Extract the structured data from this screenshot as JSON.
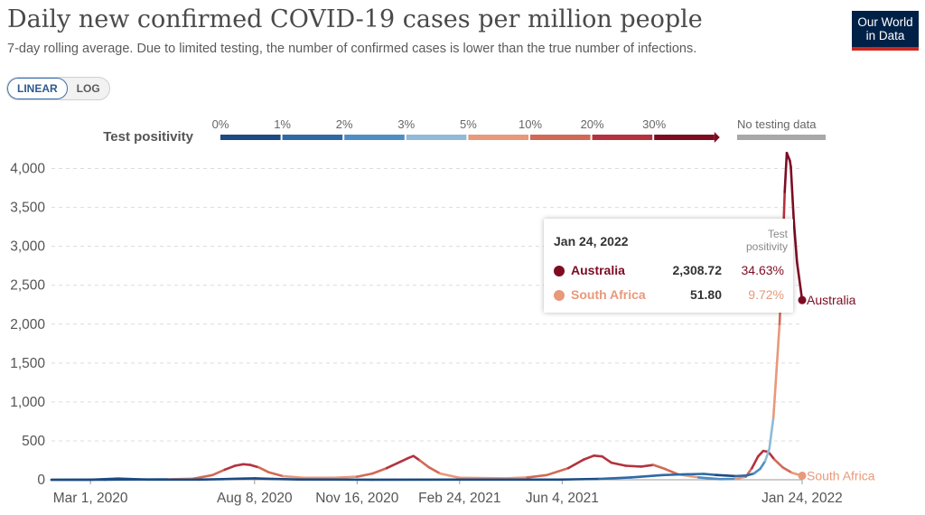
{
  "header": {
    "title": "Daily new confirmed COVID-19 cases per million people",
    "subtitle": "7-day rolling average. Due to limited testing, the number of confirmed cases is lower than the true number of infections.",
    "logo_line1": "Our World",
    "logo_line2": "in Data"
  },
  "scale_toggle": {
    "linear_label": "LINEAR",
    "log_label": "LOG",
    "selected": "LINEAR"
  },
  "legend": {
    "title": "Test positivity",
    "bins": [
      {
        "label": "0%",
        "color": "#1d4a82"
      },
      {
        "label": "1%",
        "color": "#2e69a6"
      },
      {
        "label": "2%",
        "color": "#4f8ec4"
      },
      {
        "label": "3%",
        "color": "#8fbad8"
      },
      {
        "label": "5%",
        "color": "#e8997a"
      },
      {
        "label": "10%",
        "color": "#d16a55"
      },
      {
        "label": "20%",
        "color": "#b3323e"
      },
      {
        "label": "30%",
        "color": "#7d0c23"
      }
    ],
    "no_data_label": "No testing data",
    "no_data_color": "#a8a8a8"
  },
  "tooltip": {
    "date": "Jan 24, 2022",
    "column_header_line1": "Test",
    "column_header_line2": "positivity",
    "rows": [
      {
        "name": "Australia",
        "value": "2,308.72",
        "positivity": "34.63%",
        "color": "#7d0c23"
      },
      {
        "name": "South Africa",
        "value": "51.80",
        "positivity": "9.72%",
        "color": "#e8997a"
      }
    ]
  },
  "chart_data": {
    "type": "line",
    "title": "Daily new confirmed COVID-19 cases per million people",
    "ylim": [
      0,
      4250
    ],
    "yticks": [
      0,
      500,
      1000,
      1500,
      2000,
      2500,
      3000,
      3500,
      4000
    ],
    "ytick_labels": [
      "0",
      "500",
      "1,000",
      "1,500",
      "2,000",
      "2,500",
      "3,000",
      "3,500",
      "4,000"
    ],
    "xlim": [
      "2020-01-23",
      "2022-01-24"
    ],
    "xticks": [
      "2020-03-01",
      "2020-08-08",
      "2020-11-16",
      "2021-02-24",
      "2021-06-04",
      "2022-01-24"
    ],
    "xtick_labels": [
      "Mar 1, 2020",
      "Aug 8, 2020",
      "Nov 16, 2020",
      "Feb 24, 2021",
      "Jun 4, 2021",
      "Jan 24, 2022"
    ],
    "grid": "horizontal dashed",
    "series": [
      {
        "name": "Australia",
        "end_label": "Australia",
        "end_color": "#7d0c23",
        "points": [
          [
            "2020-01-23",
            0,
            "#a8a8a8"
          ],
          [
            "2020-03-01",
            1,
            "#1d4a82"
          ],
          [
            "2020-03-28",
            15,
            "#1d4a82"
          ],
          [
            "2020-04-25",
            2,
            "#1d4a82"
          ],
          [
            "2020-06-15",
            2,
            "#1d4a82"
          ],
          [
            "2020-07-08",
            8,
            "#1d4a82"
          ],
          [
            "2020-07-28",
            15,
            "#1d4a82"
          ],
          [
            "2020-08-08",
            18,
            "#1d4a82"
          ],
          [
            "2020-08-25",
            10,
            "#1d4a82"
          ],
          [
            "2020-09-20",
            3,
            "#1d4a82"
          ],
          [
            "2020-12-01",
            1,
            "#1d4a82"
          ],
          [
            "2021-06-01",
            2,
            "#1d4a82"
          ],
          [
            "2021-07-10",
            12,
            "#1d4a82"
          ],
          [
            "2021-08-10",
            30,
            "#2e69a6"
          ],
          [
            "2021-09-10",
            60,
            "#2e69a6"
          ],
          [
            "2021-09-30",
            70,
            "#2e69a6"
          ],
          [
            "2021-10-20",
            75,
            "#2e69a6"
          ],
          [
            "2021-11-01",
            62,
            "#2e69a6"
          ],
          [
            "2021-11-20",
            48,
            "#1d4a82"
          ],
          [
            "2021-12-01",
            55,
            "#2e69a6"
          ],
          [
            "2021-12-08",
            80,
            "#2e69a6"
          ],
          [
            "2021-12-14",
            140,
            "#4f8ec4"
          ],
          [
            "2021-12-19",
            240,
            "#4f8ec4"
          ],
          [
            "2021-12-23",
            400,
            "#8fbad8"
          ],
          [
            "2021-12-27",
            800,
            "#8fbad8"
          ],
          [
            "2021-12-30",
            1400,
            "#e8997a"
          ],
          [
            "2022-01-02",
            2000,
            "#e8997a"
          ],
          [
            "2022-01-05",
            2900,
            "#d16a55"
          ],
          [
            "2022-01-07",
            3700,
            "#b3323e"
          ],
          [
            "2022-01-09",
            4200,
            "#7d0c23"
          ],
          [
            "2022-01-12",
            4100,
            "#7d0c23"
          ],
          [
            "2022-01-13",
            4020,
            "#7d0c23"
          ],
          [
            "2022-01-16",
            3300,
            "#7d0c23"
          ],
          [
            "2022-01-19",
            2800,
            "#7d0c23"
          ],
          [
            "2022-01-24",
            2308.72,
            "#7d0c23"
          ]
        ]
      },
      {
        "name": "South Africa",
        "end_label": "South Africa",
        "end_color": "#e8997a",
        "points": [
          [
            "2020-01-23",
            0,
            "#a8a8a8"
          ],
          [
            "2020-03-15",
            1,
            "#1d4a82"
          ],
          [
            "2020-05-15",
            5,
            "#1d4a82"
          ],
          [
            "2020-06-10",
            15,
            "#e8997a"
          ],
          [
            "2020-06-28",
            60,
            "#d16a55"
          ],
          [
            "2020-07-10",
            130,
            "#d16a55"
          ],
          [
            "2020-07-20",
            180,
            "#b3323e"
          ],
          [
            "2020-07-28",
            200,
            "#b3323e"
          ],
          [
            "2020-08-04",
            190,
            "#b3323e"
          ],
          [
            "2020-08-12",
            160,
            "#b3323e"
          ],
          [
            "2020-08-22",
            95,
            "#d16a55"
          ],
          [
            "2020-09-05",
            45,
            "#d16a55"
          ],
          [
            "2020-09-25",
            25,
            "#e8997a"
          ],
          [
            "2020-10-25",
            25,
            "#e8997a"
          ],
          [
            "2020-11-16",
            40,
            "#e8997a"
          ],
          [
            "2020-12-01",
            80,
            "#d16a55"
          ],
          [
            "2020-12-15",
            150,
            "#d16a55"
          ],
          [
            "2020-12-28",
            230,
            "#b3323e"
          ],
          [
            "2021-01-05",
            280,
            "#b3323e"
          ],
          [
            "2021-01-10",
            305,
            "#b3323e"
          ],
          [
            "2021-01-16",
            250,
            "#b3323e"
          ],
          [
            "2021-01-25",
            160,
            "#d16a55"
          ],
          [
            "2021-02-05",
            80,
            "#d16a55"
          ],
          [
            "2021-02-24",
            25,
            "#e8997a"
          ],
          [
            "2021-04-10",
            18,
            "#e8997a"
          ],
          [
            "2021-05-01",
            30,
            "#e8997a"
          ],
          [
            "2021-05-20",
            60,
            "#d16a55"
          ],
          [
            "2021-06-10",
            150,
            "#d16a55"
          ],
          [
            "2021-06-25",
            260,
            "#b3323e"
          ],
          [
            "2021-07-05",
            310,
            "#b3323e"
          ],
          [
            "2021-07-13",
            300,
            "#b3323e"
          ],
          [
            "2021-07-22",
            220,
            "#b3323e"
          ],
          [
            "2021-08-05",
            180,
            "#b3323e"
          ],
          [
            "2021-08-20",
            170,
            "#b3323e"
          ],
          [
            "2021-09-01",
            190,
            "#b3323e"
          ],
          [
            "2021-09-12",
            140,
            "#d16a55"
          ],
          [
            "2021-09-25",
            70,
            "#d16a55"
          ],
          [
            "2021-10-15",
            30,
            "#e8997a"
          ],
          [
            "2021-11-05",
            8,
            "#4f8ec4"
          ],
          [
            "2021-11-20",
            10,
            "#4f8ec4"
          ],
          [
            "2021-11-30",
            40,
            "#e8997a"
          ],
          [
            "2021-12-06",
            150,
            "#d16a55"
          ],
          [
            "2021-12-12",
            300,
            "#b3323e"
          ],
          [
            "2021-12-17",
            370,
            "#b3323e"
          ],
          [
            "2021-12-22",
            360,
            "#b3323e"
          ],
          [
            "2021-12-28",
            260,
            "#b3323e"
          ],
          [
            "2022-01-05",
            160,
            "#d16a55"
          ],
          [
            "2022-01-14",
            90,
            "#d16a55"
          ],
          [
            "2022-01-24",
            51.8,
            "#e8997a"
          ]
        ]
      }
    ]
  }
}
